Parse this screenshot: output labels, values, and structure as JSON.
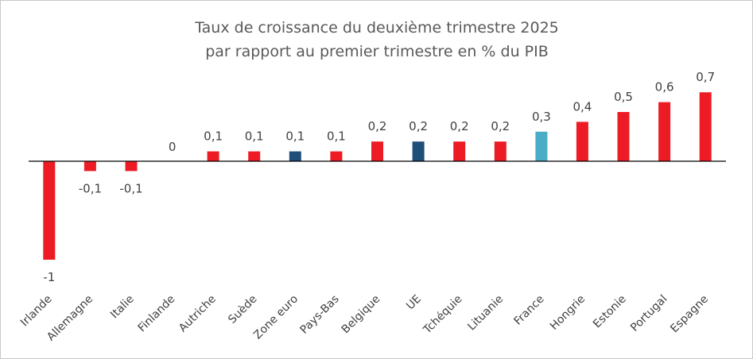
{
  "chart_data": {
    "type": "bar",
    "title_lines": [
      "Taux de croissance du deuxième trimestre 2025",
      "par rapport au premier trimestre en % du PIB"
    ],
    "xlabel": "",
    "ylabel": "",
    "ylim": [
      -1.0,
      0.7
    ],
    "grid": false,
    "legend": "none",
    "categories": [
      "Irlande",
      "Allemagne",
      "Italie",
      "Finlande",
      "Autriche",
      "Suède",
      "Zone euro",
      "Pays-Bas",
      "Belgique",
      "UE",
      "Tchéquie",
      "Lituanie",
      "France",
      "Hongrie",
      "Estonie",
      "Portugal",
      "Espagne"
    ],
    "values": [
      -1,
      -0.1,
      -0.1,
      0,
      0.1,
      0.1,
      0.1,
      0.1,
      0.2,
      0.2,
      0.2,
      0.2,
      0.3,
      0.4,
      0.5,
      0.6,
      0.7
    ],
    "value_labels": [
      "-1",
      "-0,1",
      "-0,1",
      "0",
      "0,1",
      "0,1",
      "0,1",
      "0,1",
      "0,2",
      "0,2",
      "0,2",
      "0,2",
      "0,3",
      "0,4",
      "0,5",
      "0,6",
      "0,7"
    ],
    "bar_colors": [
      "#ed1c24",
      "#ed1c24",
      "#ed1c24",
      "#ed1c24",
      "#ed1c24",
      "#ed1c24",
      "#1f4e79",
      "#ed1c24",
      "#ed1c24",
      "#1f4e79",
      "#ed1c24",
      "#ed1c24",
      "#4bacc6",
      "#ed1c24",
      "#ed1c24",
      "#ed1c24",
      "#ed1c24"
    ],
    "axis_color": "#000000"
  }
}
